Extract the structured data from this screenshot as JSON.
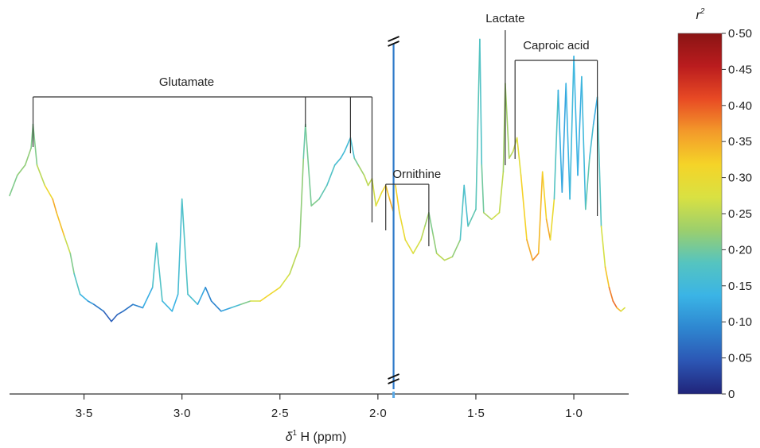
{
  "chart_data": {
    "type": "line",
    "xlabel_symbol": "δ",
    "xlabel_sup": "1",
    "xlabel_rest": " H (ppm)",
    "x_reversed": true,
    "xlim": [
      3.88,
      0.72
    ],
    "xticks": [
      3.5,
      3.0,
      2.5,
      2.0,
      1.5,
      1.0
    ],
    "xtick_labels": [
      "3·5",
      "3·0",
      "2·5",
      "2·0",
      "1·5",
      "1·0"
    ],
    "axis_break_x": 1.92,
    "grid": false,
    "colorbar": {
      "title_base": "r",
      "title_sup": "2",
      "range": [
        0,
        0.5
      ],
      "ticks": [
        0,
        0.05,
        0.1,
        0.15,
        0.2,
        0.25,
        0.3,
        0.35,
        0.4,
        0.45,
        0.5
      ],
      "tick_labels": [
        "0",
        "0·05",
        "0·10",
        "0·15",
        "0·20",
        "0·25",
        "0·30",
        "0·35",
        "0·40",
        "0·45",
        "0·50"
      ],
      "colors": [
        "#20247a",
        "#2c56b4",
        "#2e86d0",
        "#3ab4e6",
        "#55c4c0",
        "#9ccf6c",
        "#d9e142",
        "#f5d428",
        "#f39a2a",
        "#e84a24",
        "#ba1c1e",
        "#8a1414"
      ]
    },
    "annotations": [
      {
        "label": "Glutamate",
        "peaks": [
          3.76,
          2.37,
          2.14,
          2.03
        ]
      },
      {
        "label": "Ornithine",
        "peaks": [
          1.96,
          1.74
        ]
      },
      {
        "label": "Lactate",
        "peaks": [
          1.35
        ]
      },
      {
        "label": "Caproic acid",
        "peaks": [
          1.3,
          0.88
        ]
      }
    ],
    "series": [
      {
        "x": [
          3.88,
          3.84,
          3.8,
          3.77,
          3.76,
          3.74,
          3.7,
          3.66,
          3.64,
          3.6,
          3.57,
          3.55,
          3.52,
          3.48,
          3.45,
          3.4,
          3.36,
          3.33,
          3.3,
          3.25,
          3.2,
          3.15,
          3.13,
          3.1,
          3.05,
          3.02,
          3.0,
          2.97,
          2.92,
          2.88,
          2.85,
          2.8,
          2.75,
          2.7,
          2.65,
          2.6,
          2.55,
          2.5,
          2.45,
          2.4,
          2.38,
          2.37,
          2.34,
          2.3,
          2.26,
          2.22,
          2.19,
          2.17,
          2.14,
          2.12,
          2.1,
          2.07,
          2.05,
          2.03,
          2.01,
          1.98,
          1.96,
          1.94,
          1.92
        ],
        "y": [
          0.49,
          0.55,
          0.58,
          0.63,
          0.7,
          0.58,
          0.52,
          0.48,
          0.44,
          0.37,
          0.32,
          0.26,
          0.2,
          0.18,
          0.17,
          0.15,
          0.12,
          0.14,
          0.15,
          0.17,
          0.16,
          0.22,
          0.35,
          0.18,
          0.15,
          0.2,
          0.48,
          0.2,
          0.17,
          0.22,
          0.18,
          0.15,
          0.16,
          0.17,
          0.18,
          0.18,
          0.2,
          0.22,
          0.26,
          0.34,
          0.6,
          0.7,
          0.46,
          0.48,
          0.52,
          0.58,
          0.6,
          0.62,
          0.66,
          0.6,
          0.58,
          0.55,
          0.52,
          0.54,
          0.46,
          0.5,
          0.52,
          0.48,
          0.44
        ],
        "r2": [
          0.2,
          0.22,
          0.22,
          0.22,
          0.2,
          0.22,
          0.28,
          0.33,
          0.37,
          0.3,
          0.22,
          0.2,
          0.16,
          0.12,
          0.1,
          0.06,
          0.05,
          0.06,
          0.07,
          0.08,
          0.1,
          0.16,
          0.18,
          0.17,
          0.12,
          0.15,
          0.17,
          0.18,
          0.15,
          0.1,
          0.08,
          0.1,
          0.14,
          0.18,
          0.24,
          0.3,
          0.33,
          0.28,
          0.26,
          0.24,
          0.2,
          0.19,
          0.22,
          0.2,
          0.18,
          0.17,
          0.15,
          0.16,
          0.15,
          0.18,
          0.22,
          0.24,
          0.26,
          0.25,
          0.28,
          0.3,
          0.32,
          0.34,
          0.36
        ]
      },
      {
        "x": [
          1.91,
          1.89,
          1.86,
          1.82,
          1.78,
          1.76,
          1.74,
          1.72,
          1.7,
          1.66,
          1.62,
          1.58,
          1.56,
          1.54,
          1.5,
          1.48,
          1.47,
          1.46,
          1.42,
          1.38,
          1.36,
          1.35,
          1.33,
          1.31,
          1.29,
          1.27,
          1.24,
          1.21,
          1.18,
          1.16,
          1.14,
          1.12,
          1.1,
          1.08,
          1.06,
          1.04,
          1.02,
          1.0,
          0.98,
          0.96,
          0.94,
          0.92,
          0.9,
          0.88,
          0.86,
          0.84,
          0.82,
          0.8,
          0.78,
          0.76,
          0.74
        ],
        "y": [
          0.52,
          0.44,
          0.36,
          0.32,
          0.36,
          0.4,
          0.44,
          0.38,
          0.32,
          0.3,
          0.31,
          0.36,
          0.52,
          0.4,
          0.45,
          0.95,
          0.58,
          0.44,
          0.42,
          0.44,
          0.56,
          0.82,
          0.6,
          0.62,
          0.66,
          0.55,
          0.36,
          0.3,
          0.32,
          0.56,
          0.42,
          0.36,
          0.48,
          0.8,
          0.5,
          0.82,
          0.48,
          0.9,
          0.55,
          0.84,
          0.45,
          0.6,
          0.7,
          0.78,
          0.4,
          0.28,
          0.22,
          0.18,
          0.16,
          0.15,
          0.16
        ],
        "r2": [
          0.34,
          0.3,
          0.3,
          0.28,
          0.26,
          0.24,
          0.22,
          0.2,
          0.24,
          0.26,
          0.24,
          0.2,
          0.15,
          0.18,
          0.2,
          0.17,
          0.18,
          0.22,
          0.26,
          0.27,
          0.24,
          0.22,
          0.24,
          0.25,
          0.27,
          0.3,
          0.34,
          0.36,
          0.38,
          0.3,
          0.34,
          0.36,
          0.24,
          0.12,
          0.14,
          0.1,
          0.18,
          0.12,
          0.16,
          0.1,
          0.2,
          0.18,
          0.14,
          0.12,
          0.24,
          0.3,
          0.36,
          0.4,
          0.38,
          0.3,
          0.25
        ]
      }
    ],
    "vertical_line": {
      "x": 1.92,
      "r2": 0.08
    }
  }
}
